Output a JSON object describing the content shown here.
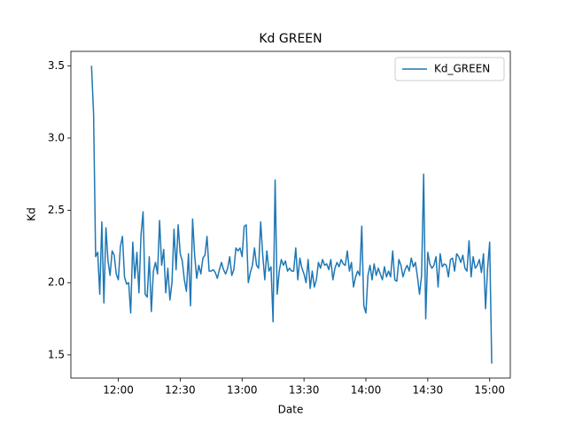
{
  "chart_data": {
    "type": "line",
    "title": "Kd GREEN",
    "xlabel": "Date",
    "ylabel": "Kd",
    "x": [
      "11:47",
      "11:48",
      "11:49",
      "11:50",
      "11:51",
      "11:52",
      "11:53",
      "11:54",
      "11:55",
      "11:56",
      "11:57",
      "11:58",
      "11:59",
      "12:00",
      "12:01",
      "12:02",
      "12:03",
      "12:04",
      "12:05",
      "12:06",
      "12:07",
      "12:08",
      "12:09",
      "12:10",
      "12:11",
      "12:12",
      "12:13",
      "12:14",
      "12:15",
      "12:16",
      "12:17",
      "12:18",
      "12:19",
      "12:20",
      "12:21",
      "12:22",
      "12:23",
      "12:24",
      "12:25",
      "12:26",
      "12:27",
      "12:28",
      "12:29",
      "12:30",
      "12:31",
      "12:32",
      "12:33",
      "12:34",
      "12:35",
      "12:36",
      "12:37",
      "12:38",
      "12:39",
      "12:40",
      "12:41",
      "12:42",
      "12:43",
      "12:44",
      "12:45",
      "12:46",
      "12:47",
      "12:48",
      "12:49",
      "12:50",
      "12:51",
      "12:52",
      "12:53",
      "12:54",
      "12:55",
      "12:56",
      "12:57",
      "12:58",
      "12:59",
      "13:00",
      "13:01",
      "13:02",
      "13:03",
      "13:04",
      "13:05",
      "13:06",
      "13:07",
      "13:08",
      "13:09",
      "13:10",
      "13:11",
      "13:12",
      "13:13",
      "13:14",
      "13:15",
      "13:16",
      "13:17",
      "13:18",
      "13:19",
      "13:20",
      "13:21",
      "13:22",
      "13:23",
      "13:24",
      "13:25",
      "13:26",
      "13:27",
      "13:28",
      "13:29",
      "13:30",
      "13:31",
      "13:32",
      "13:33",
      "13:34",
      "13:35",
      "13:36",
      "13:37",
      "13:38",
      "13:39",
      "13:40",
      "13:41",
      "13:42",
      "13:43",
      "13:44",
      "13:45",
      "13:46",
      "13:47",
      "13:48",
      "13:49",
      "13:50",
      "13:51",
      "13:52",
      "13:53",
      "13:54",
      "13:55",
      "13:56",
      "13:57",
      "13:58",
      "13:59",
      "14:00",
      "14:01",
      "14:02",
      "14:03",
      "14:04",
      "14:05",
      "14:06",
      "14:07",
      "14:08",
      "14:09",
      "14:10",
      "14:11",
      "14:12",
      "14:13",
      "14:14",
      "14:15",
      "14:16",
      "14:17",
      "14:18",
      "14:19",
      "14:20",
      "14:21",
      "14:22",
      "14:23",
      "14:24",
      "14:25",
      "14:26",
      "14:27",
      "14:28",
      "14:29",
      "14:30",
      "14:31",
      "14:32",
      "14:33",
      "14:34",
      "14:35",
      "14:36",
      "14:37",
      "14:38",
      "14:39",
      "14:40",
      "14:41",
      "14:42",
      "14:43",
      "14:44",
      "14:45",
      "14:46",
      "14:47",
      "14:48",
      "14:49",
      "14:50",
      "14:51",
      "14:52",
      "14:53",
      "14:54",
      "14:55",
      "14:56",
      "14:57",
      "14:58",
      "14:59",
      "15:00",
      "15:01"
    ],
    "series": [
      {
        "name": "Kd_GREEN",
        "color": "#1f77b4",
        "values": [
          3.5,
          3.17,
          2.18,
          2.21,
          1.92,
          2.42,
          1.86,
          2.38,
          2.15,
          2.05,
          2.22,
          2.19,
          2.06,
          2.02,
          2.25,
          2.32,
          2.04,
          1.99,
          2.0,
          1.79,
          2.28,
          2.03,
          2.21,
          1.93,
          2.33,
          2.49,
          1.92,
          1.9,
          2.18,
          1.8,
          2.08,
          2.14,
          2.06,
          2.43,
          2.12,
          2.23,
          1.93,
          2.1,
          1.88,
          2.0,
          2.37,
          2.09,
          2.4,
          2.2,
          2.15,
          2.02,
          1.94,
          2.2,
          1.84,
          2.44,
          2.19,
          2.03,
          2.12,
          2.06,
          2.17,
          2.19,
          2.32,
          2.08,
          2.08,
          2.09,
          2.07,
          2.03,
          2.09,
          2.14,
          2.09,
          2.06,
          2.1,
          2.18,
          2.05,
          2.09,
          2.24,
          2.22,
          2.24,
          2.18,
          2.39,
          2.4,
          2.0,
          2.07,
          2.12,
          2.24,
          2.12,
          2.1,
          2.42,
          2.19,
          2.02,
          2.22,
          2.08,
          2.11,
          1.73,
          2.71,
          1.92,
          2.08,
          2.16,
          2.12,
          2.15,
          2.08,
          2.1,
          2.08,
          2.08,
          2.24,
          2.02,
          2.17,
          2.1,
          2.06,
          2.0,
          2.16,
          1.96,
          2.08,
          1.97,
          2.02,
          2.14,
          2.1,
          2.16,
          2.12,
          2.13,
          2.09,
          2.16,
          2.02,
          2.1,
          2.14,
          2.11,
          2.16,
          2.13,
          2.12,
          2.22,
          2.08,
          2.14,
          1.97,
          2.04,
          2.08,
          2.05,
          2.39,
          1.84,
          1.79,
          2.05,
          2.12,
          2.02,
          2.13,
          2.05,
          2.1,
          2.06,
          2.02,
          2.11,
          2.04,
          2.08,
          2.04,
          2.22,
          2.02,
          2.01,
          2.16,
          2.12,
          2.04,
          2.09,
          2.12,
          2.08,
          2.17,
          2.11,
          2.14,
          2.04,
          1.92,
          2.05,
          2.75,
          1.75,
          2.21,
          2.13,
          2.1,
          2.12,
          2.18,
          1.97,
          2.2,
          2.11,
          2.13,
          2.12,
          2.04,
          2.16,
          2.17,
          2.08,
          2.2,
          2.18,
          2.14,
          2.19,
          2.1,
          2.08,
          2.29,
          2.04,
          2.18,
          2.1,
          2.12,
          2.16,
          2.07,
          2.2,
          1.82,
          2.1,
          2.28,
          1.44
        ]
      }
    ],
    "xlim": [
      "11:37",
      "15:10"
    ],
    "xticks": [
      "12:00",
      "12:30",
      "13:00",
      "13:30",
      "14:00",
      "14:30",
      "15:00"
    ],
    "ylim": [
      1.34,
      3.6
    ],
    "yticks": [
      1.5,
      {
        "value": 2,
        "label": "2.0"
      },
      2.5,
      {
        "value": 3,
        "label": "3.0"
      },
      3.5
    ],
    "legend": "upper right"
  }
}
